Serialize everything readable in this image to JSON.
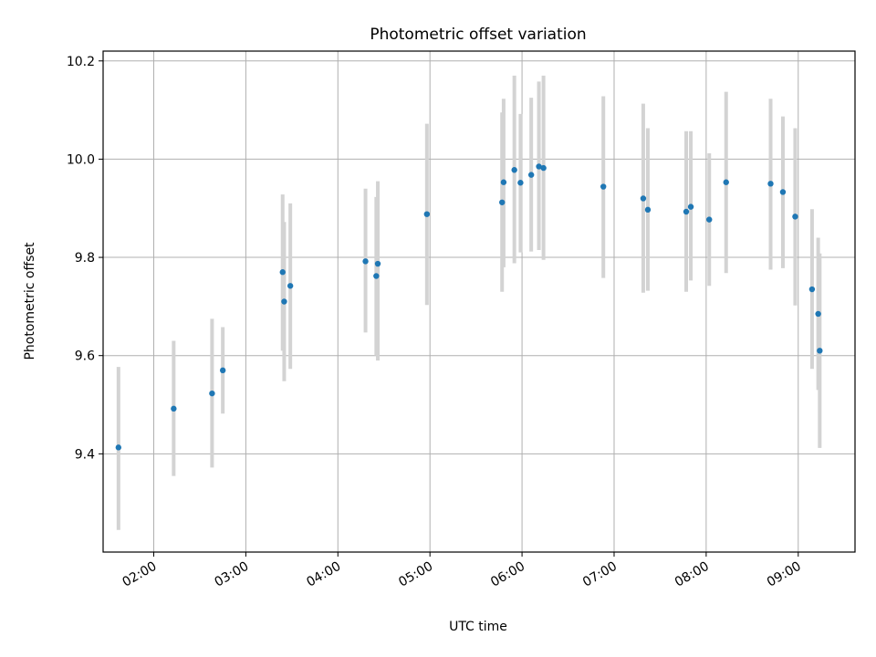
{
  "chart_data": {
    "type": "scatter",
    "title": "Photometric offset variation",
    "xlabel": "UTC time",
    "ylabel": "Photometric offset",
    "xlim": [
      "01:27",
      "09:37"
    ],
    "ylim": [
      9.2,
      10.22
    ],
    "x_ticks": [
      "02:00",
      "03:00",
      "04:00",
      "05:00",
      "06:00",
      "07:00",
      "08:00",
      "09:00"
    ],
    "y_ticks": [
      9.4,
      9.6,
      9.8,
      10.0,
      10.2
    ],
    "y_tick_labels": [
      "9.4",
      "9.6",
      "9.8",
      "10.0",
      "10.2"
    ],
    "grid": true,
    "error_bars": true,
    "colors": {
      "point": "#1f77b4",
      "errorbar": "#d3d3d3",
      "grid": "#b0b0b0"
    },
    "points": [
      {
        "x": "01:37",
        "y": 9.413,
        "ylow": 9.245,
        "yhigh": 9.577
      },
      {
        "x": "02:13",
        "y": 9.492,
        "ylow": 9.355,
        "yhigh": 9.63
      },
      {
        "x": "02:38",
        "y": 9.523,
        "ylow": 9.372,
        "yhigh": 9.675
      },
      {
        "x": "02:45",
        "y": 9.57,
        "ylow": 9.482,
        "yhigh": 9.658
      },
      {
        "x": "03:24",
        "y": 9.77,
        "ylow": 9.61,
        "yhigh": 9.928
      },
      {
        "x": "03:25",
        "y": 9.71,
        "ylow": 9.548,
        "yhigh": 9.872
      },
      {
        "x": "03:29",
        "y": 9.742,
        "ylow": 9.573,
        "yhigh": 9.91
      },
      {
        "x": "04:18",
        "y": 9.792,
        "ylow": 9.647,
        "yhigh": 9.94
      },
      {
        "x": "04:25",
        "y": 9.762,
        "ylow": 9.6,
        "yhigh": 9.923
      },
      {
        "x": "04:26",
        "y": 9.787,
        "ylow": 9.59,
        "yhigh": 9.955
      },
      {
        "x": "04:58",
        "y": 9.888,
        "ylow": 9.703,
        "yhigh": 10.072
      },
      {
        "x": "05:47",
        "y": 9.912,
        "ylow": 9.73,
        "yhigh": 10.095
      },
      {
        "x": "05:48",
        "y": 9.953,
        "ylow": 9.78,
        "yhigh": 10.123
      },
      {
        "x": "05:55",
        "y": 9.978,
        "ylow": 9.788,
        "yhigh": 10.17
      },
      {
        "x": "05:59",
        "y": 9.952,
        "ylow": 9.81,
        "yhigh": 10.092
      },
      {
        "x": "06:06",
        "y": 9.968,
        "ylow": 9.812,
        "yhigh": 10.125
      },
      {
        "x": "06:11",
        "y": 9.985,
        "ylow": 9.815,
        "yhigh": 10.158
      },
      {
        "x": "06:14",
        "y": 9.982,
        "ylow": 9.795,
        "yhigh": 10.17
      },
      {
        "x": "06:53",
        "y": 9.944,
        "ylow": 9.758,
        "yhigh": 10.128
      },
      {
        "x": "07:19",
        "y": 9.92,
        "ylow": 9.728,
        "yhigh": 10.113
      },
      {
        "x": "07:22",
        "y": 9.897,
        "ylow": 9.732,
        "yhigh": 10.063
      },
      {
        "x": "07:47",
        "y": 9.893,
        "ylow": 9.73,
        "yhigh": 10.057
      },
      {
        "x": "07:50",
        "y": 9.903,
        "ylow": 9.753,
        "yhigh": 10.057
      },
      {
        "x": "08:02",
        "y": 9.877,
        "ylow": 9.742,
        "yhigh": 10.012
      },
      {
        "x": "08:13",
        "y": 9.953,
        "ylow": 9.768,
        "yhigh": 10.137
      },
      {
        "x": "08:42",
        "y": 9.95,
        "ylow": 9.775,
        "yhigh": 10.123
      },
      {
        "x": "08:50",
        "y": 9.933,
        "ylow": 9.778,
        "yhigh": 10.087
      },
      {
        "x": "08:58",
        "y": 9.883,
        "ylow": 9.702,
        "yhigh": 10.063
      },
      {
        "x": "09:09",
        "y": 9.735,
        "ylow": 9.573,
        "yhigh": 9.898
      },
      {
        "x": "09:13",
        "y": 9.685,
        "ylow": 9.53,
        "yhigh": 9.84
      },
      {
        "x": "09:14",
        "y": 9.61,
        "ylow": 9.412,
        "yhigh": 9.808
      }
    ]
  }
}
